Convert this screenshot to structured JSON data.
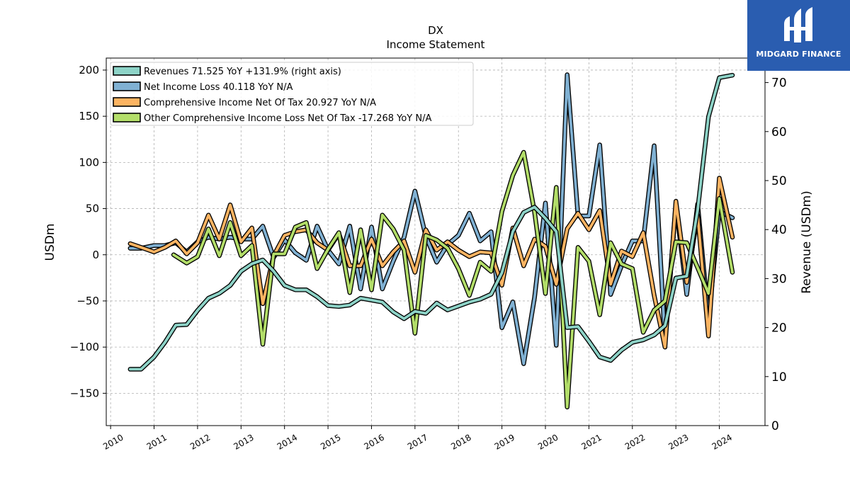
{
  "chart_data": {
    "type": "line",
    "title": "DX",
    "subtitle": "Income Statement",
    "ylabel": "USDm",
    "ylabel_right": "Revenue (USDm)",
    "ylim": [
      -185,
      213
    ],
    "ylim_right": [
      0,
      75
    ],
    "yticks": [
      200,
      150,
      100,
      50,
      0,
      -50,
      -100,
      -150
    ],
    "yticks_right": [
      70,
      60,
      50,
      40,
      30,
      20,
      10,
      0
    ],
    "xlim": [
      2009.9,
      2025.05
    ],
    "xticks": [
      "2010",
      "2011",
      "2012",
      "2013",
      "2014",
      "2015",
      "2016",
      "2017",
      "2018",
      "2019",
      "2020",
      "2021",
      "2022",
      "2023",
      "2024"
    ],
    "grid": true,
    "legend_position": "top-left",
    "series": [
      {
        "name": "Revenues  71.525 YoY +131.9% (right axis)",
        "axis": "right",
        "color": "#8dd3c7",
        "points": [
          [
            2010.45,
            11.5
          ],
          [
            2010.7,
            11.5
          ],
          [
            2011.0,
            14
          ],
          [
            2011.25,
            17
          ],
          [
            2011.5,
            20.5
          ],
          [
            2011.75,
            20.6
          ],
          [
            2012.0,
            23.5
          ],
          [
            2012.25,
            26
          ],
          [
            2012.5,
            27
          ],
          [
            2012.75,
            28.6
          ],
          [
            2013.0,
            31.5
          ],
          [
            2013.25,
            33
          ],
          [
            2013.5,
            33.8
          ],
          [
            2013.75,
            31.5
          ],
          [
            2014.0,
            28.6
          ],
          [
            2014.25,
            27.7
          ],
          [
            2014.5,
            27.7
          ],
          [
            2014.75,
            26.3
          ],
          [
            2015.0,
            24.5
          ],
          [
            2015.25,
            24.3
          ],
          [
            2015.5,
            24.6
          ],
          [
            2015.75,
            26
          ],
          [
            2016.0,
            25.6
          ],
          [
            2016.25,
            25.2
          ],
          [
            2016.5,
            23.2
          ],
          [
            2016.75,
            21.8
          ],
          [
            2017.0,
            23.3
          ],
          [
            2017.25,
            22.9
          ],
          [
            2017.5,
            25
          ],
          [
            2017.75,
            23.6
          ],
          [
            2018.0,
            24.4
          ],
          [
            2018.25,
            25.2
          ],
          [
            2018.5,
            25.8
          ],
          [
            2018.75,
            26.8
          ],
          [
            2019.0,
            31.2
          ],
          [
            2019.25,
            39.6
          ],
          [
            2019.5,
            43.5
          ],
          [
            2019.75,
            44.6
          ],
          [
            2020.0,
            42.3
          ],
          [
            2020.25,
            39.6
          ],
          [
            2020.5,
            20
          ],
          [
            2020.75,
            20.2
          ],
          [
            2021.0,
            17.2
          ],
          [
            2021.25,
            14
          ],
          [
            2021.5,
            13.3
          ],
          [
            2021.75,
            15.4
          ],
          [
            2022.0,
            17
          ],
          [
            2022.25,
            17.5
          ],
          [
            2022.5,
            18.5
          ],
          [
            2022.75,
            20.4
          ],
          [
            2023.0,
            30.1
          ],
          [
            2023.25,
            30.5
          ],
          [
            2023.5,
            44
          ],
          [
            2023.75,
            63
          ],
          [
            2024.0,
            71
          ],
          [
            2024.3,
            71.5
          ]
        ]
      },
      {
        "name": "Net Income Loss  40.118 YoY N/A",
        "axis": "left",
        "color": "#80b1d3",
        "points": [
          [
            2010.45,
            7
          ],
          [
            2010.7,
            7
          ],
          [
            2011.0,
            10
          ],
          [
            2011.25,
            10
          ],
          [
            2011.5,
            13
          ],
          [
            2011.75,
            3
          ],
          [
            2012.0,
            14
          ],
          [
            2012.25,
            19
          ],
          [
            2012.5,
            17
          ],
          [
            2012.75,
            19
          ],
          [
            2013.0,
            17
          ],
          [
            2013.25,
            17
          ],
          [
            2013.5,
            31
          ],
          [
            2013.75,
            -3
          ],
          [
            2014.0,
            16
          ],
          [
            2014.25,
            2
          ],
          [
            2014.5,
            -6
          ],
          [
            2014.75,
            31
          ],
          [
            2015.0,
            5
          ],
          [
            2015.25,
            -10
          ],
          [
            2015.5,
            31
          ],
          [
            2015.75,
            -37
          ],
          [
            2016.0,
            30
          ],
          [
            2016.25,
            -37
          ],
          [
            2016.5,
            -7
          ],
          [
            2016.75,
            19
          ],
          [
            2017.0,
            69
          ],
          [
            2017.25,
            20
          ],
          [
            2017.5,
            -8
          ],
          [
            2017.75,
            11
          ],
          [
            2018.0,
            21
          ],
          [
            2018.25,
            45
          ],
          [
            2018.5,
            15
          ],
          [
            2018.75,
            25
          ],
          [
            2019.0,
            -79
          ],
          [
            2019.25,
            -51
          ],
          [
            2019.5,
            -118
          ],
          [
            2019.75,
            -46
          ],
          [
            2020.0,
            56
          ],
          [
            2020.25,
            -98
          ],
          [
            2020.5,
            195
          ],
          [
            2020.75,
            42
          ],
          [
            2021.0,
            42
          ],
          [
            2021.25,
            119
          ],
          [
            2021.5,
            -43
          ],
          [
            2021.75,
            -12
          ],
          [
            2022.0,
            15
          ],
          [
            2022.25,
            15
          ],
          [
            2022.5,
            118
          ],
          [
            2022.75,
            -92
          ],
          [
            2023.0,
            54
          ],
          [
            2023.25,
            -43
          ],
          [
            2023.5,
            55
          ],
          [
            2023.75,
            -70
          ],
          [
            2024.0,
            47
          ],
          [
            2024.3,
            40
          ]
        ]
      },
      {
        "name": "Comprehensive Income Net Of Tax  20.927 YoY N/A",
        "axis": "left",
        "color": "#fdb462",
        "points": [
          [
            2010.45,
            12
          ],
          [
            2010.7,
            8
          ],
          [
            2011.0,
            3
          ],
          [
            2011.25,
            8
          ],
          [
            2011.5,
            15
          ],
          [
            2011.75,
            1
          ],
          [
            2012.0,
            13
          ],
          [
            2012.25,
            43
          ],
          [
            2012.5,
            17
          ],
          [
            2012.75,
            54
          ],
          [
            2013.0,
            14
          ],
          [
            2013.25,
            29
          ],
          [
            2013.5,
            -53
          ],
          [
            2013.75,
            -1
          ],
          [
            2014.0,
            21
          ],
          [
            2014.25,
            25
          ],
          [
            2014.5,
            27
          ],
          [
            2014.75,
            13
          ],
          [
            2015.0,
            5
          ],
          [
            2015.25,
            23
          ],
          [
            2015.5,
            -12
          ],
          [
            2015.75,
            -12
          ],
          [
            2016.0,
            17
          ],
          [
            2016.25,
            -12
          ],
          [
            2016.5,
            3
          ],
          [
            2016.75,
            15
          ],
          [
            2017.0,
            -19
          ],
          [
            2017.25,
            27
          ],
          [
            2017.5,
            5
          ],
          [
            2017.75,
            14
          ],
          [
            2018.0,
            5
          ],
          [
            2018.25,
            -2
          ],
          [
            2018.5,
            3
          ],
          [
            2018.75,
            2
          ],
          [
            2019.0,
            -33
          ],
          [
            2019.25,
            29
          ],
          [
            2019.5,
            -12
          ],
          [
            2019.75,
            17
          ],
          [
            2020.0,
            9
          ],
          [
            2020.25,
            -32
          ],
          [
            2020.5,
            28
          ],
          [
            2020.75,
            45
          ],
          [
            2021.0,
            27
          ],
          [
            2021.25,
            48
          ],
          [
            2021.5,
            -32
          ],
          [
            2021.75,
            4
          ],
          [
            2022.0,
            -2
          ],
          [
            2022.25,
            24
          ],
          [
            2022.5,
            -44
          ],
          [
            2022.75,
            -100
          ],
          [
            2023.0,
            58
          ],
          [
            2023.25,
            -30
          ],
          [
            2023.5,
            43
          ],
          [
            2023.75,
            -88
          ],
          [
            2024.0,
            83
          ],
          [
            2024.3,
            19
          ]
        ]
      },
      {
        "name": "Other Comprehensive Income Loss Net Of Tax  -17.268 YoY N/A",
        "axis": "left",
        "color": "#b3de69",
        "points": [
          [
            2011.45,
            0
          ],
          [
            2011.75,
            -9
          ],
          [
            2012.0,
            -2
          ],
          [
            2012.25,
            28
          ],
          [
            2012.5,
            -1
          ],
          [
            2012.75,
            35
          ],
          [
            2013.0,
            -1
          ],
          [
            2013.25,
            10
          ],
          [
            2013.5,
            -97
          ],
          [
            2013.75,
            1
          ],
          [
            2014.0,
            1
          ],
          [
            2014.25,
            30
          ],
          [
            2014.5,
            35
          ],
          [
            2014.75,
            -15
          ],
          [
            2015.0,
            6
          ],
          [
            2015.25,
            24
          ],
          [
            2015.5,
            -41
          ],
          [
            2015.75,
            27
          ],
          [
            2016.0,
            -38
          ],
          [
            2016.25,
            43
          ],
          [
            2016.5,
            28
          ],
          [
            2016.75,
            5
          ],
          [
            2017.0,
            -85
          ],
          [
            2017.25,
            21
          ],
          [
            2017.5,
            16
          ],
          [
            2017.75,
            7
          ],
          [
            2018.0,
            -15
          ],
          [
            2018.25,
            -44
          ],
          [
            2018.5,
            -8
          ],
          [
            2018.75,
            -18
          ],
          [
            2019.0,
            47
          ],
          [
            2019.25,
            86
          ],
          [
            2019.5,
            111
          ],
          [
            2019.75,
            46
          ],
          [
            2020.0,
            -42
          ],
          [
            2020.25,
            73
          ],
          [
            2020.5,
            -165
          ],
          [
            2020.75,
            8
          ],
          [
            2021.0,
            -7
          ],
          [
            2021.25,
            -65
          ],
          [
            2021.5,
            13
          ],
          [
            2021.75,
            -10
          ],
          [
            2022.0,
            -15
          ],
          [
            2022.25,
            -84
          ],
          [
            2022.5,
            -60
          ],
          [
            2022.75,
            -50
          ],
          [
            2023.0,
            14
          ],
          [
            2023.25,
            13
          ],
          [
            2023.5,
            -14
          ],
          [
            2023.75,
            -42
          ],
          [
            2024.0,
            61
          ],
          [
            2024.3,
            -19
          ]
        ]
      }
    ]
  },
  "logo": {
    "text": "MIDGARD FINANCE",
    "background": "#2a5db0"
  }
}
